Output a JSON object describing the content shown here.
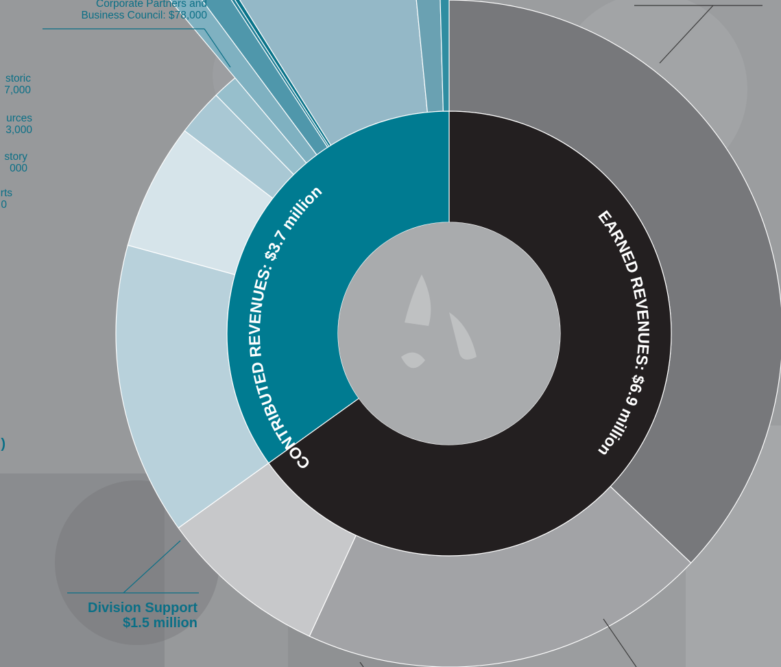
{
  "chart_data": {
    "type": "sunburst",
    "title": "",
    "inner_ring": [
      {
        "label": "CONTRIBUTED REVENUES: $3.7 million",
        "value": 3.7,
        "color": "#007b91"
      },
      {
        "label": "EARNED REVENUES: $6.9 million",
        "value": 6.9,
        "color": "#231f20"
      }
    ],
    "outer_ring": [
      {
        "parent": "EARNED REVENUES: $6.9 million",
        "label": "",
        "value": 3.93,
        "color": "#77787b"
      },
      {
        "parent": "EARNED REVENUES: $6.9 million",
        "label": "",
        "value": 2.1,
        "color": "#a2a3a6"
      },
      {
        "parent": "EARNED REVENUES: $6.9 million",
        "label": "",
        "value": 0.87,
        "color": "#c7c8ca"
      },
      {
        "parent": "CONTRIBUTED REVENUES: $3.7 million",
        "label": "Division Support\n$1.5 million",
        "value": 1.5,
        "color": "#b8d1db"
      },
      {
        "parent": "CONTRIBUTED REVENUES: $3.7 million",
        "label": "",
        "value": 0.65,
        "color": "#d6e4ea"
      },
      {
        "parent": "CONTRIBUTED REVENUES: $3.7 million",
        "label": "",
        "value": 0.24,
        "color": "#a9c8d4"
      },
      {
        "parent": "CONTRIBUTED REVENUES: $3.7 million",
        "label": "",
        "value": 0.13,
        "color": "#97bfcc"
      },
      {
        "parent": "CONTRIBUTED REVENUES: $3.7 million",
        "label": "...rts\n...0",
        "value": 0.1,
        "color": "#7fb1c1"
      },
      {
        "parent": "CONTRIBUTED REVENUES: $3.7 million",
        "label": "...story\n...000",
        "value": 0.1,
        "color": "#4f97ab"
      },
      {
        "parent": "CONTRIBUTED REVENUES: $3.7 million",
        "label": "...urces\n...3,000",
        "value": 0.013,
        "color": "#217f96"
      },
      {
        "parent": "CONTRIBUTED REVENUES: $3.7 million",
        "label": "...storic\n...7,000",
        "value": 0.017,
        "color": "#087389"
      },
      {
        "parent": "CONTRIBUTED REVENUES: $3.7 million",
        "label": "",
        "value": 0.78,
        "color": "#94b8c7"
      },
      {
        "parent": "CONTRIBUTED REVENUES: $3.7 million",
        "label": "",
        "value": 0.12,
        "color": "#6aa1b2"
      },
      {
        "parent": "CONTRIBUTED REVENUES: $3.7 million",
        "label": "",
        "value": 0.045,
        "color": "#2f8da1"
      }
    ]
  },
  "labels": {
    "corporate": "Corporate Partners and\nBusiness Council: $78,000",
    "historic_1": "storic",
    "historic_2": "7,000",
    "sources_1": "urces",
    "sources_2": "3,000",
    "history_1": "story",
    "history_2": "000",
    "arts_1": "rts",
    "arts_2": "0",
    "division_1": "Division Support",
    "division_2": "$1.5 million",
    "left_edge_fragment": ")"
  }
}
